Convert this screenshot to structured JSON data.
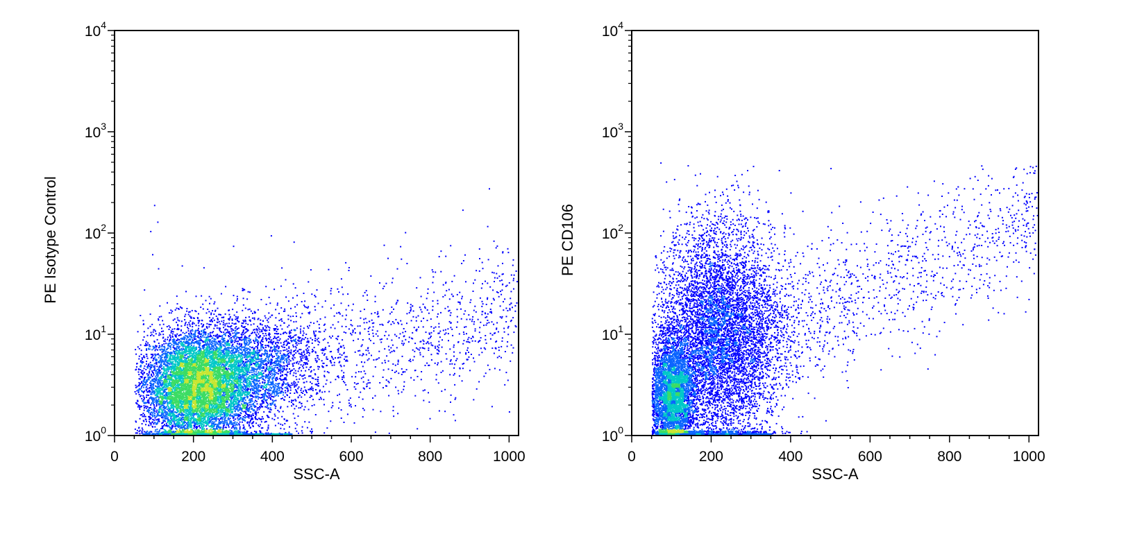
{
  "chart_data": [
    {
      "type": "scatter",
      "subtype": "flow-cytometry-density-dot-plot",
      "title": "",
      "xlabel": "SSC-A",
      "ylabel": "PE Isotype Control",
      "xlim": [
        0,
        1024
      ],
      "ylim": [
        1,
        10000
      ],
      "y_scale": "log",
      "x_ticks": [
        "0",
        "200",
        "400",
        "600",
        "800",
        "1000"
      ],
      "x_tick_values": [
        0,
        200,
        400,
        600,
        800,
        1000
      ],
      "y_ticks": [
        {
          "base": "10",
          "exp": "0"
        },
        {
          "base": "10",
          "exp": "1"
        },
        {
          "base": "10",
          "exp": "2"
        },
        {
          "base": "10",
          "exp": "3"
        },
        {
          "base": "10",
          "exp": "4"
        }
      ],
      "y_tick_values": [
        1,
        10,
        100,
        1000,
        10000
      ],
      "grid": false,
      "legend": "none",
      "point_colors": [
        "#0000ff",
        "#0a64ff",
        "#00c8c8",
        "#3cdc64",
        "#c8e632"
      ],
      "populations": [
        {
          "x_center": 210,
          "y_center": 3.0,
          "x_spread": 75,
          "y_log_spread": 0.28,
          "fraction": 0.7,
          "density": "high"
        },
        {
          "x_center": 330,
          "y_center": 5.0,
          "x_spread": 90,
          "y_log_spread": 0.25,
          "fraction": 0.2,
          "density": "medium"
        },
        {
          "x_range": [
            380,
            1020
          ],
          "y_trend": [
            5,
            15
          ],
          "fraction": 0.1,
          "density": "sparse"
        }
      ],
      "floor_band": {
        "y": 1.05,
        "x_range": [
          70,
          450
        ]
      },
      "outliers": [
        [
          100,
          190
        ],
        [
          90,
          105
        ],
        [
          108,
          130
        ],
        [
          95,
          62
        ],
        [
          300,
          75
        ],
        [
          170,
          48
        ],
        [
          225,
          46
        ],
        [
          110,
          45
        ],
        [
          280,
          30
        ]
      ]
    },
    {
      "type": "scatter",
      "subtype": "flow-cytometry-density-dot-plot",
      "title": "",
      "xlabel": "SSC-A",
      "ylabel": "PE CD106",
      "xlim": [
        0,
        1024
      ],
      "ylim": [
        1,
        10000
      ],
      "y_scale": "log",
      "x_ticks": [
        "0",
        "200",
        "400",
        "600",
        "800",
        "1000"
      ],
      "x_tick_values": [
        0,
        200,
        400,
        600,
        800,
        1000
      ],
      "y_ticks": [
        {
          "base": "10",
          "exp": "0"
        },
        {
          "base": "10",
          "exp": "1"
        },
        {
          "base": "10",
          "exp": "2"
        },
        {
          "base": "10",
          "exp": "3"
        },
        {
          "base": "10",
          "exp": "4"
        }
      ],
      "y_tick_values": [
        1,
        10,
        100,
        1000,
        10000
      ],
      "grid": false,
      "legend": "none",
      "point_colors": [
        "#0000ff",
        "#0a64ff",
        "#00c8c8",
        "#3cdc64",
        "#c8e632"
      ],
      "populations": [
        {
          "x_center": 100,
          "y_center": 2.5,
          "x_spread": 30,
          "y_log_spread": 0.3,
          "fraction": 0.35,
          "density": "high"
        },
        {
          "x_center": 220,
          "y_center": 10,
          "x_spread": 75,
          "y_log_spread": 0.55,
          "fraction": 0.55,
          "density": "high"
        },
        {
          "x_range": [
            300,
            1020
          ],
          "y_trend": [
            8,
            150
          ],
          "fraction": 0.1,
          "density": "sparse"
        }
      ],
      "floor_band": {
        "y": 1.05,
        "x_range": [
          60,
          350
        ]
      },
      "outliers": [
        [
          905,
          350
        ],
        [
          500,
          440
        ],
        [
          370,
          420
        ],
        [
          290,
          420
        ],
        [
          760,
          330
        ],
        [
          820,
          290
        ],
        [
          1010,
          150
        ],
        [
          915,
          110
        ],
        [
          970,
          240
        ]
      ]
    }
  ]
}
